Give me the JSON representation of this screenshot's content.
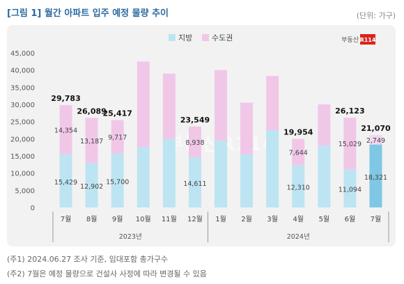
{
  "title": "[그림 1] 월간 아파트 입주 예정 물량 추이",
  "unit": "(단위: 가구)",
  "logo": {
    "text": "부동산",
    "badge": "R114"
  },
  "watermark": "부동산R114",
  "notes": [
    "(주1) 2024.06.27 조사 기준, 임대포함 총가구수",
    "(주2) 7월은 예정 물량으로 건설사 사정에 따라 변경될 수 있음"
  ],
  "colors": {
    "local": "#bde4f2",
    "capital": "#f1c7e8",
    "local_highlight": "#7ec8e3",
    "capital_highlight": "#f3d6ef",
    "title": "#2c6aa0"
  },
  "chart_data": {
    "type": "bar",
    "stacked": true,
    "categories": [
      "7월",
      "8월",
      "9월",
      "10월",
      "11월",
      "12월",
      "1월",
      "2월",
      "3월",
      "4월",
      "5월",
      "6월",
      "7월"
    ],
    "groups": [
      {
        "label": "2023년",
        "start": 0,
        "end": 5
      },
      {
        "label": "2024년",
        "start": 6,
        "end": 12
      }
    ],
    "series": [
      {
        "name": "지방",
        "values": [
          15429,
          12902,
          15700,
          17500,
          20000,
          14611,
          19500,
          15500,
          22500,
          12310,
          18000,
          11094,
          18321
        ]
      },
      {
        "name": "수도권",
        "values": [
          14354,
          13187,
          9717,
          25000,
          19000,
          8938,
          20500,
          15000,
          15800,
          7644,
          12000,
          15029,
          2749
        ]
      }
    ],
    "totals": [
      29783,
      26089,
      25417,
      null,
      null,
      23549,
      null,
      null,
      null,
      19954,
      null,
      26123,
      21070
    ],
    "segment_labels": {
      "지방": [
        "15,429",
        "12,902",
        "15,700",
        "",
        "",
        "14,611",
        "",
        "",
        "",
        "12,310",
        "",
        "11,094",
        "18,321"
      ],
      "수도권": [
        "14,354",
        "13,187",
        "9,717",
        "",
        "",
        "8,938",
        "",
        "",
        "",
        "7,644",
        "",
        "15,029",
        "2,749"
      ]
    },
    "total_labels": [
      "29,783",
      "26,089",
      "25,417",
      "",
      "",
      "23,549",
      "",
      "",
      "",
      "19,954",
      "",
      "26,123",
      "21,070"
    ],
    "y_ticks": [
      "0",
      "5,000",
      "10,000",
      "15,000",
      "20,000",
      "25,000",
      "30,000",
      "35,000",
      "40,000",
      "45,000"
    ],
    "ylim": [
      0,
      45000
    ],
    "highlight_index": 12,
    "legend_position": "top-center",
    "grid": false
  }
}
